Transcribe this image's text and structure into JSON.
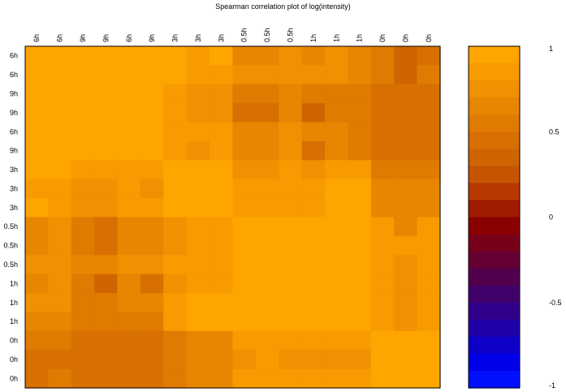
{
  "chart_data": {
    "type": "heatmap",
    "title": "Spearman correlation plot of log(intensity)",
    "column_labels": [
      "6h",
      "6h",
      "9h",
      "9h",
      "6h",
      "9h",
      "3h",
      "3h",
      "3h",
      "0.5h",
      "0.5h",
      "0.5h",
      "1h",
      "1h",
      "1h",
      "0h",
      "0h",
      "0h"
    ],
    "row_labels": [
      "6h",
      "6h",
      "9h",
      "9h",
      "6h",
      "9h",
      "3h",
      "3h",
      "3h",
      "0.5h",
      "0.5h",
      "0.5h",
      "1h",
      "1h",
      "1h",
      "0h",
      "0h",
      "0h"
    ],
    "values": [
      [
        1.0,
        1.0,
        0.95,
        0.95,
        1.0,
        0.98,
        0.93,
        0.88,
        0.97,
        0.62,
        0.62,
        0.72,
        0.62,
        0.72,
        0.68,
        0.52,
        0.4,
        0.45
      ],
      [
        1.0,
        1.0,
        0.95,
        0.95,
        1.0,
        1.0,
        0.93,
        0.86,
        0.86,
        0.75,
        0.75,
        0.75,
        0.75,
        0.75,
        0.68,
        0.52,
        0.4,
        0.56
      ],
      [
        0.95,
        0.95,
        1.0,
        1.0,
        1.0,
        1.0,
        0.8,
        0.73,
        0.73,
        0.6,
        0.6,
        0.66,
        0.55,
        0.6,
        0.6,
        0.5,
        0.42,
        0.42
      ],
      [
        0.95,
        0.95,
        1.0,
        1.0,
        1.0,
        1.0,
        0.86,
        0.73,
        0.73,
        0.5,
        0.5,
        0.66,
        0.4,
        0.55,
        0.55,
        0.5,
        0.42,
        0.42
      ],
      [
        1.0,
        1.0,
        1.0,
        1.0,
        1.0,
        1.0,
        0.86,
        0.86,
        0.86,
        0.66,
        0.66,
        0.79,
        0.66,
        0.66,
        0.6,
        0.5,
        0.42,
        0.42
      ],
      [
        0.98,
        1.0,
        1.0,
        1.0,
        1.0,
        1.0,
        0.86,
        0.73,
        0.86,
        0.66,
        0.66,
        0.79,
        0.5,
        0.66,
        0.55,
        0.5,
        0.42,
        0.42
      ],
      [
        0.93,
        0.93,
        0.8,
        0.86,
        0.86,
        0.86,
        1.0,
        0.97,
        0.97,
        0.75,
        0.75,
        0.86,
        0.75,
        0.86,
        0.86,
        0.6,
        0.6,
        0.6
      ],
      [
        0.88,
        0.86,
        0.73,
        0.73,
        0.86,
        0.73,
        0.97,
        1.0,
        1.0,
        0.82,
        0.82,
        0.82,
        0.82,
        0.93,
        0.93,
        0.66,
        0.66,
        0.66
      ],
      [
        0.97,
        0.86,
        0.73,
        0.73,
        0.86,
        0.86,
        0.97,
        1.0,
        1.0,
        0.82,
        0.82,
        0.82,
        0.82,
        0.93,
        0.93,
        0.66,
        0.66,
        0.66
      ],
      [
        0.62,
        0.75,
        0.6,
        0.5,
        0.66,
        0.66,
        0.75,
        0.82,
        0.82,
        1.0,
        1.0,
        1.0,
        1.0,
        1.0,
        1.0,
        0.82,
        0.7,
        0.82
      ],
      [
        0.62,
        0.75,
        0.6,
        0.5,
        0.66,
        0.66,
        0.75,
        0.82,
        0.82,
        1.0,
        1.0,
        1.0,
        1.0,
        1.0,
        1.0,
        0.82,
        0.82,
        0.88
      ],
      [
        0.72,
        0.75,
        0.66,
        0.66,
        0.79,
        0.79,
        0.86,
        0.82,
        0.82,
        1.0,
        1.0,
        1.0,
        1.0,
        1.0,
        1.0,
        0.82,
        0.72,
        0.82
      ],
      [
        0.62,
        0.75,
        0.55,
        0.4,
        0.66,
        0.5,
        0.75,
        0.82,
        0.82,
        1.0,
        1.0,
        1.0,
        1.0,
        1.0,
        1.0,
        0.82,
        0.72,
        0.82
      ],
      [
        0.72,
        0.75,
        0.6,
        0.55,
        0.66,
        0.66,
        0.86,
        0.93,
        0.93,
        1.0,
        1.0,
        1.0,
        1.0,
        1.0,
        1.0,
        0.82,
        0.72,
        0.82
      ],
      [
        0.68,
        0.68,
        0.6,
        0.55,
        0.6,
        0.55,
        0.86,
        0.93,
        0.93,
        1.0,
        1.0,
        1.0,
        1.0,
        1.0,
        1.0,
        0.82,
        0.72,
        0.82
      ],
      [
        0.52,
        0.52,
        0.5,
        0.5,
        0.5,
        0.5,
        0.6,
        0.66,
        0.66,
        0.82,
        0.82,
        0.82,
        0.82,
        0.82,
        0.82,
        1.0,
        0.95,
        0.95
      ],
      [
        0.46,
        0.46,
        0.42,
        0.42,
        0.42,
        0.42,
        0.6,
        0.66,
        0.66,
        0.72,
        0.82,
        0.72,
        0.72,
        0.72,
        0.72,
        0.95,
        1.0,
        1.0
      ],
      [
        0.45,
        0.56,
        0.42,
        0.42,
        0.42,
        0.42,
        0.6,
        0.66,
        0.66,
        0.82,
        0.88,
        0.82,
        0.82,
        0.82,
        0.82,
        0.95,
        1.0,
        1.0
      ]
    ],
    "color_scale": {
      "min": -1,
      "max": 1,
      "tick_labels": [
        "1",
        "0.5",
        "0",
        "-0.5",
        "-1"
      ],
      "tick_values": [
        1,
        0.5,
        0,
        -0.5,
        -1
      ],
      "colors": [
        "#ffa500",
        "#f79b00",
        "#ef9100",
        "#e78600",
        "#df7b00",
        "#d77000",
        "#cf6500",
        "#c75500",
        "#b83800",
        "#a01c00",
        "#8b0000",
        "#780018",
        "#660033",
        "#52004d",
        "#42006b",
        "#30008a",
        "#1f00a9",
        "#0e00c8",
        "#0000e8",
        "#0010ff"
      ]
    }
  }
}
